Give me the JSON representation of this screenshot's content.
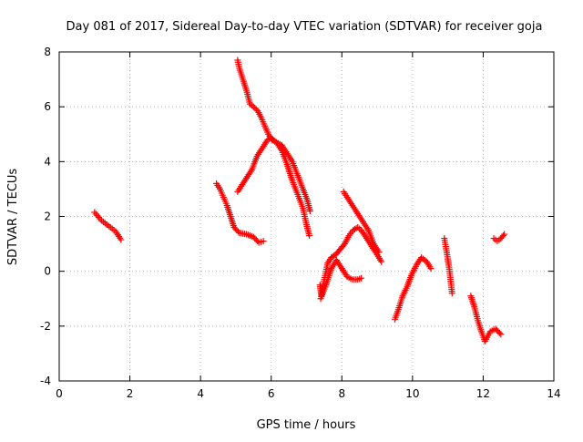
{
  "chart_data": {
    "type": "scatter",
    "title": "Day 081 of 2017, Sidereal Day-to-day VTEC variation (SDTVAR) for receiver goja",
    "xlabel": "GPS time / hours",
    "ylabel": "SDTVAR / TECUs",
    "xlim": [
      0,
      14
    ],
    "ylim": [
      -4,
      8
    ],
    "x_ticks": [
      0,
      2,
      4,
      6,
      8,
      10,
      12,
      14
    ],
    "y_ticks": [
      -4,
      -2,
      0,
      2,
      4,
      6,
      8
    ],
    "x_tick_labels": [
      "0",
      "2",
      "4",
      "6",
      "8",
      "10",
      "12",
      "14"
    ],
    "y_tick_labels": [
      "-4",
      "-2",
      "0",
      "2",
      "4",
      "6",
      "8"
    ],
    "grid": true,
    "marker": "plus",
    "color": "#ff0000",
    "series": [
      {
        "x": [
          1.0,
          1.2,
          1.4,
          1.6,
          1.75
        ],
        "y": [
          2.15,
          1.85,
          1.65,
          1.45,
          1.15
        ]
      },
      {
        "x": [
          4.45,
          4.55,
          4.65,
          4.75,
          4.85,
          4.95,
          5.1,
          5.3,
          5.5,
          5.65,
          5.78
        ],
        "y": [
          3.2,
          3.0,
          2.7,
          2.4,
          2.0,
          1.6,
          1.4,
          1.35,
          1.25,
          1.05,
          1.1
        ]
      },
      {
        "x": [
          5.05,
          5.1,
          5.2,
          5.3,
          5.4,
          5.5,
          5.62,
          5.72,
          5.82,
          5.92,
          6.02,
          6.15,
          6.3,
          6.45,
          6.6,
          6.75,
          6.9,
          7.0,
          7.08
        ],
        "y": [
          7.7,
          7.4,
          7.0,
          6.6,
          6.1,
          6.0,
          5.85,
          5.6,
          5.3,
          5.0,
          4.8,
          4.7,
          4.4,
          3.9,
          3.3,
          2.8,
          2.3,
          1.7,
          1.3
        ]
      },
      {
        "x": [
          5.05,
          5.15,
          5.3,
          5.45,
          5.6,
          5.75,
          5.9,
          6.0,
          6.15,
          6.3,
          6.45,
          6.6,
          6.75,
          6.9,
          7.02,
          7.1
        ],
        "y": [
          2.9,
          3.1,
          3.4,
          3.7,
          4.2,
          4.5,
          4.8,
          4.85,
          4.7,
          4.6,
          4.3,
          4.0,
          3.5,
          3.0,
          2.6,
          2.2
        ]
      },
      {
        "x": [
          7.38,
          7.42,
          7.5,
          7.6,
          7.7,
          7.82,
          7.95,
          8.08,
          8.2,
          8.32,
          8.45,
          8.55,
          8.7,
          8.85,
          9.0,
          9.12
        ],
        "y": [
          -0.5,
          -0.9,
          -0.3,
          0.3,
          0.5,
          0.6,
          0.8,
          1.0,
          1.3,
          1.5,
          1.6,
          1.5,
          1.2,
          0.9,
          0.6,
          0.35
        ]
      },
      {
        "x": [
          8.05,
          8.15,
          8.3,
          8.45,
          8.6,
          8.75,
          8.9,
          9.05
        ],
        "y": [
          2.9,
          2.7,
          2.4,
          2.1,
          1.8,
          1.5,
          1.0,
          0.7
        ]
      },
      {
        "x": [
          7.4,
          7.55,
          7.7,
          7.85,
          8.0,
          8.15,
          8.3,
          8.45,
          8.55
        ],
        "y": [
          -1.0,
          -0.5,
          0.1,
          0.4,
          0.1,
          -0.2,
          -0.3,
          -0.3,
          -0.25
        ]
      },
      {
        "x": [
          9.5,
          9.6,
          9.72,
          9.85,
          9.98,
          10.12,
          10.25,
          10.4,
          10.52
        ],
        "y": [
          -1.75,
          -1.4,
          -0.9,
          -0.55,
          -0.1,
          0.25,
          0.5,
          0.35,
          0.1
        ]
      },
      {
        "x": [
          10.9,
          10.98,
          11.05,
          11.12
        ],
        "y": [
          1.2,
          0.6,
          0.0,
          -0.8
        ]
      },
      {
        "x": [
          11.65,
          11.75,
          11.85,
          11.95,
          12.05,
          12.2,
          12.35,
          12.5
        ],
        "y": [
          -0.9,
          -1.3,
          -1.8,
          -2.2,
          -2.55,
          -2.2,
          -2.1,
          -2.3
        ]
      },
      {
        "x": [
          12.3,
          12.4,
          12.5,
          12.6
        ],
        "y": [
          1.2,
          1.1,
          1.2,
          1.35
        ]
      }
    ]
  }
}
